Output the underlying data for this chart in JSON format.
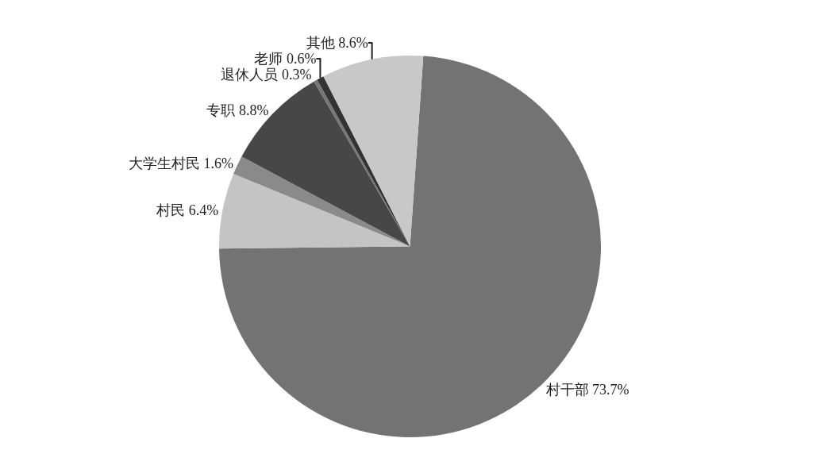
{
  "chart_data": {
    "type": "pie",
    "categories": [
      "村干部",
      "村民",
      "大学生村民",
      "专职",
      "退休人员",
      "老师",
      "其他"
    ],
    "values": [
      73.7,
      6.4,
      1.6,
      8.8,
      0.3,
      0.6,
      8.6
    ],
    "value_labels": [
      "73.7%",
      "6.4%",
      "1.6%",
      "8.8%",
      "0.3%",
      "0.6%",
      "8.6%"
    ],
    "colors": [
      "#737373",
      "#c4c4c4",
      "#8a8a8a",
      "#474747",
      "#767676",
      "#333333",
      "#c8c8c8"
    ],
    "legend": false
  }
}
